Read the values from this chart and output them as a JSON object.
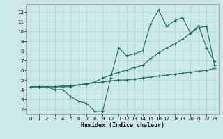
{
  "title": "",
  "xlabel": "Humidex (Indice chaleur)",
  "bg_color": "#cce8e8",
  "grid_color": "#aad4d4",
  "line_color": "#1a6b5a",
  "xlim": [
    -0.5,
    23.5
  ],
  "ylim": [
    1.5,
    12.8
  ],
  "xticks": [
    0,
    1,
    2,
    3,
    4,
    5,
    6,
    7,
    8,
    9,
    10,
    11,
    12,
    13,
    14,
    15,
    16,
    17,
    18,
    19,
    20,
    21,
    22,
    23
  ],
  "yticks": [
    2,
    3,
    4,
    5,
    6,
    7,
    8,
    9,
    10,
    11,
    12
  ],
  "series": {
    "max": {
      "x": [
        0,
        1,
        2,
        3,
        4,
        5,
        6,
        7,
        8,
        9,
        10,
        11,
        12,
        13,
        14,
        15,
        16,
        17,
        18,
        19,
        20,
        21,
        22,
        23
      ],
      "y": [
        4.3,
        4.3,
        4.3,
        4.0,
        4.0,
        3.3,
        2.8,
        2.6,
        1.8,
        1.8,
        5.2,
        8.3,
        7.5,
        7.7,
        8.0,
        10.8,
        12.2,
        10.5,
        11.1,
        11.4,
        9.8,
        10.6,
        8.3,
        6.9
      ]
    },
    "mean": {
      "x": [
        0,
        1,
        2,
        3,
        4,
        5,
        6,
        7,
        8,
        9,
        10,
        11,
        12,
        13,
        14,
        15,
        16,
        17,
        18,
        19,
        20,
        21,
        22,
        23
      ],
      "y": [
        4.3,
        4.3,
        4.3,
        4.3,
        4.3,
        4.3,
        4.5,
        4.6,
        4.8,
        5.2,
        5.5,
        5.8,
        6.0,
        6.3,
        6.5,
        7.2,
        7.8,
        8.3,
        8.7,
        9.2,
        9.8,
        10.4,
        10.5,
        6.5
      ]
    },
    "min": {
      "x": [
        0,
        1,
        2,
        3,
        4,
        5,
        6,
        7,
        8,
        9,
        10,
        11,
        12,
        13,
        14,
        15,
        16,
        17,
        18,
        19,
        20,
        21,
        22,
        23
      ],
      "y": [
        4.3,
        4.3,
        4.3,
        4.3,
        4.4,
        4.4,
        4.5,
        4.6,
        4.7,
        4.8,
        4.9,
        5.0,
        5.0,
        5.1,
        5.2,
        5.3,
        5.4,
        5.5,
        5.6,
        5.7,
        5.8,
        5.9,
        6.0,
        6.2
      ]
    }
  }
}
